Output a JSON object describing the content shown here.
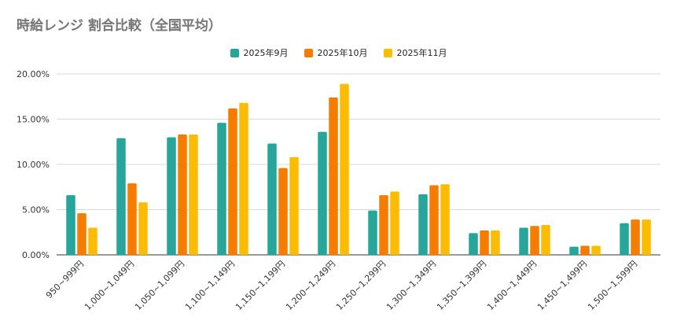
{
  "chart_data": {
    "type": "bar",
    "title": "時給レンジ 割合比較（全国平均）",
    "xlabel": "",
    "ylabel": "",
    "ylim": [
      0,
      20
    ],
    "yticks": [
      "0.00%",
      "5.00%",
      "10.00%",
      "15.00%",
      "20.00%"
    ],
    "ytick_values": [
      0,
      5,
      10,
      15,
      20
    ],
    "grid": true,
    "legend_position": "top",
    "categories": [
      "950~999円",
      "1,000~1,049円",
      "1,050~1,099円",
      "1,100~1,149円",
      "1,150~1,199円",
      "1,200~1,249円",
      "1,250~1,299円",
      "1,300~1,349円",
      "1,350~1,399円",
      "1,400~1,449円",
      "1,450~1,499円",
      "1,500~1,599円"
    ],
    "series": [
      {
        "name": "2025年9月",
        "color": "#26a69a",
        "values": [
          6.6,
          12.9,
          13.0,
          14.6,
          12.3,
          13.6,
          4.9,
          6.7,
          2.4,
          3.0,
          0.9,
          3.5
        ]
      },
      {
        "name": "2025年10月",
        "color": "#f57c00",
        "values": [
          4.6,
          7.9,
          13.3,
          16.2,
          9.6,
          17.4,
          6.6,
          7.7,
          2.7,
          3.2,
          1.0,
          3.9
        ]
      },
      {
        "name": "2025年11月",
        "color": "#fbbc04",
        "values": [
          3.0,
          5.8,
          13.3,
          16.8,
          10.8,
          18.9,
          7.0,
          7.8,
          2.7,
          3.3,
          1.0,
          3.9
        ]
      }
    ]
  }
}
